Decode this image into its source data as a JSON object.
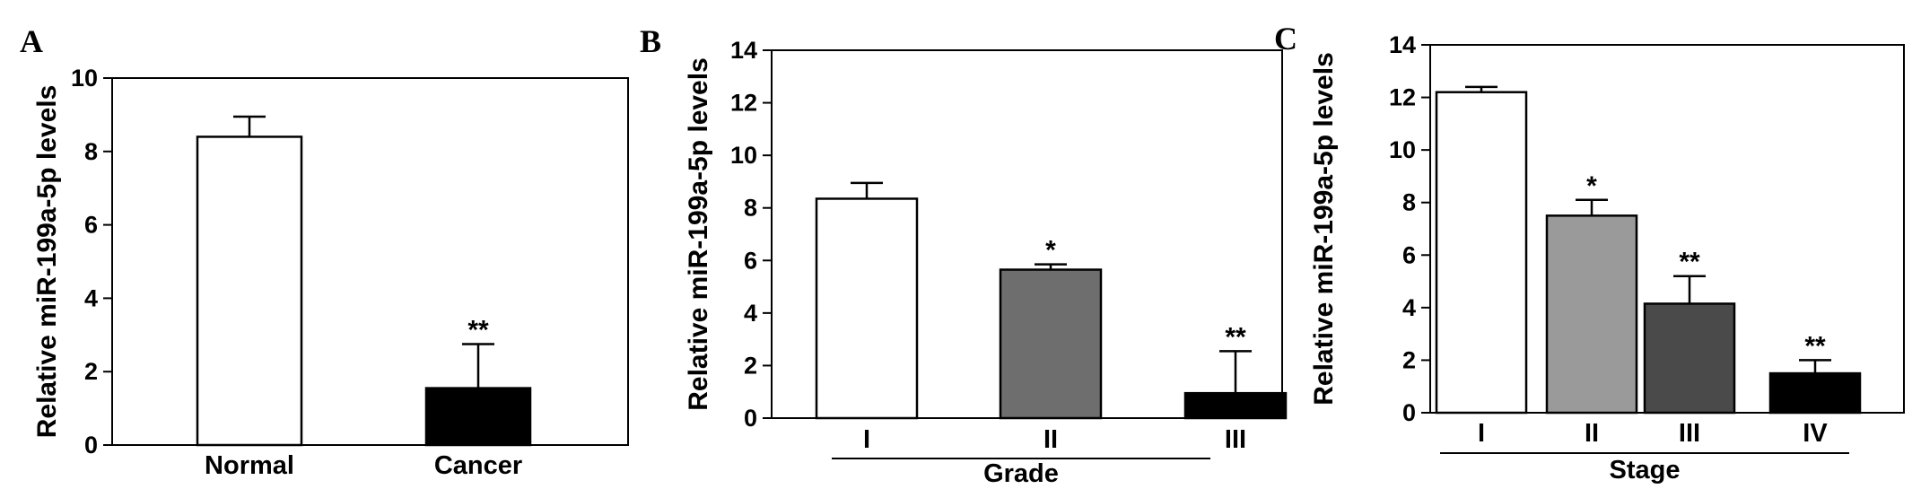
{
  "chart_data": [
    {
      "type": "bar",
      "panel_label": "A",
      "ylabel": "Relative miR-199a-5p levels",
      "ylim": [
        0,
        10
      ],
      "yticks": [
        "0",
        "2",
        "4",
        "6",
        "8",
        "10"
      ],
      "group_label": "",
      "categories": [
        "Normal",
        "Cancer"
      ],
      "values": [
        8.4,
        1.55
      ],
      "errors": [
        0.55,
        1.2
      ],
      "significance": [
        "",
        "**"
      ],
      "colors": [
        "#ffffff",
        "#000000"
      ]
    },
    {
      "type": "bar",
      "panel_label": "B",
      "ylabel": "Relative miR-199a-5p levels",
      "ylim": [
        0,
        14
      ],
      "yticks": [
        "0",
        "2",
        "4",
        "6",
        "8",
        "10",
        "12",
        "14"
      ],
      "group_label": "Grade",
      "categories": [
        "I",
        "II",
        "III"
      ],
      "values": [
        8.35,
        5.65,
        0.95
      ],
      "errors": [
        0.6,
        0.2,
        1.6
      ],
      "significance": [
        "",
        "*",
        "**"
      ],
      "colors": [
        "#ffffff",
        "#6e6e6e",
        "#000000"
      ]
    },
    {
      "type": "bar",
      "panel_label": "C",
      "ylabel": "Relative miR-199a-5p levels",
      "ylim": [
        0,
        14
      ],
      "yticks": [
        "0",
        "2",
        "4",
        "6",
        "8",
        "10",
        "12",
        "14"
      ],
      "group_label": "Stage",
      "categories": [
        "I",
        "II",
        "III",
        "IV"
      ],
      "values": [
        12.2,
        7.5,
        4.15,
        1.5
      ],
      "errors": [
        0.2,
        0.6,
        1.05,
        0.5
      ],
      "significance": [
        "",
        "*",
        "**",
        "**"
      ],
      "colors": [
        "#ffffff",
        "#9a9a9a",
        "#4a4a4a",
        "#000000"
      ]
    }
  ]
}
